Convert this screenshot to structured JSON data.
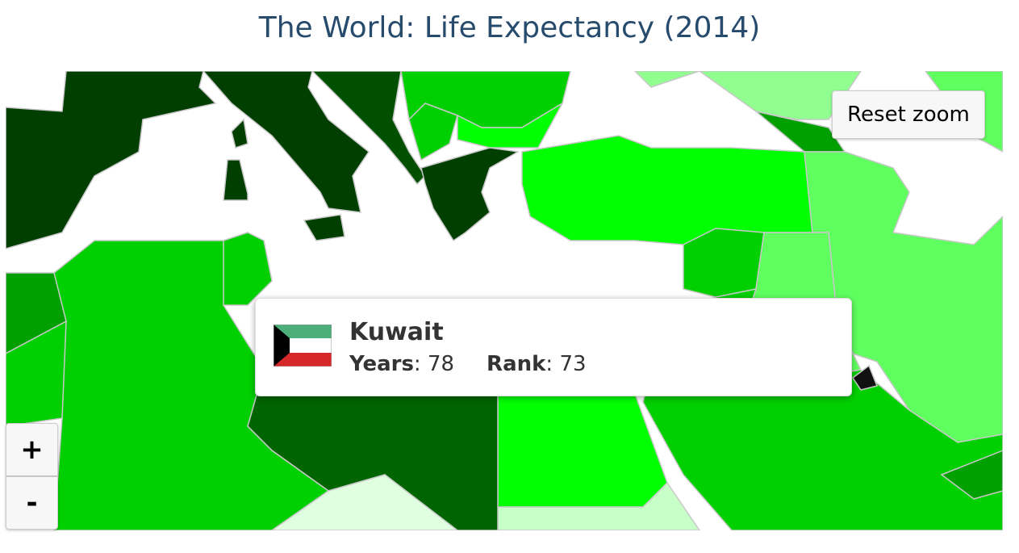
{
  "header": {
    "title": "The World: Life Expectancy (2014)"
  },
  "controls": {
    "reset_zoom": "Reset zoom",
    "zoom_in": "+",
    "zoom_out": "-"
  },
  "tooltip": {
    "country": "Kuwait",
    "separator": ":",
    "fields": [
      {
        "label": "Years",
        "value": 78
      },
      {
        "label": "Rank",
        "value": 73
      }
    ]
  }
}
